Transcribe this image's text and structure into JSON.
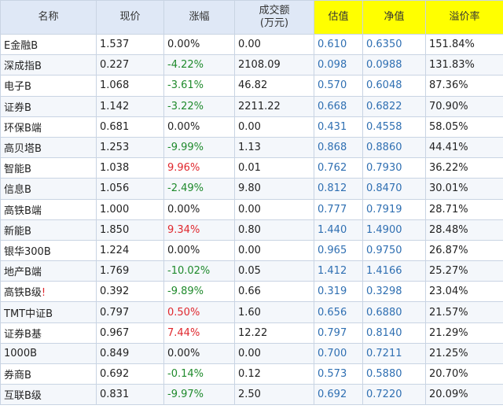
{
  "table": {
    "headers": [
      {
        "label": "名称",
        "sub": "",
        "highlight": false
      },
      {
        "label": "现价",
        "sub": "",
        "highlight": false
      },
      {
        "label": "涨幅",
        "sub": "",
        "highlight": false
      },
      {
        "label": "成交额",
        "sub": "(万元)",
        "highlight": false
      },
      {
        "label": "估值",
        "sub": "",
        "highlight": true
      },
      {
        "label": "净值",
        "sub": "",
        "highlight": true
      },
      {
        "label": "溢价率",
        "sub": "",
        "highlight": true
      }
    ],
    "rows": [
      {
        "name": "E金融B",
        "flag": "",
        "price": "1.537",
        "change": "0.00%",
        "trend": "flat",
        "volume": "0.00",
        "estimate": "0.610",
        "nav": "0.6350",
        "premium": "151.84%"
      },
      {
        "name": "深成指B",
        "flag": "",
        "price": "0.227",
        "change": "-4.22%",
        "trend": "down",
        "volume": "2108.09",
        "estimate": "0.098",
        "nav": "0.0988",
        "premium": "131.83%"
      },
      {
        "name": "电子B",
        "flag": "",
        "price": "1.068",
        "change": "-3.61%",
        "trend": "down",
        "volume": "46.82",
        "estimate": "0.570",
        "nav": "0.6048",
        "premium": "87.36%"
      },
      {
        "name": "证券B",
        "flag": "",
        "price": "1.142",
        "change": "-3.22%",
        "trend": "down",
        "volume": "2211.22",
        "estimate": "0.668",
        "nav": "0.6822",
        "premium": "70.90%"
      },
      {
        "name": "环保B端",
        "flag": "",
        "price": "0.681",
        "change": "0.00%",
        "trend": "flat",
        "volume": "0.00",
        "estimate": "0.431",
        "nav": "0.4558",
        "premium": "58.05%"
      },
      {
        "name": "高贝塔B",
        "flag": "",
        "price": "1.253",
        "change": "-9.99%",
        "trend": "down",
        "volume": "1.13",
        "estimate": "0.868",
        "nav": "0.8860",
        "premium": "44.41%"
      },
      {
        "name": "智能B",
        "flag": "",
        "price": "1.038",
        "change": "9.96%",
        "trend": "up",
        "volume": "0.01",
        "estimate": "0.762",
        "nav": "0.7930",
        "premium": "36.22%"
      },
      {
        "name": "信息B",
        "flag": "",
        "price": "1.056",
        "change": "-2.49%",
        "trend": "down",
        "volume": "9.80",
        "estimate": "0.812",
        "nav": "0.8470",
        "premium": "30.01%"
      },
      {
        "name": "高铁B端",
        "flag": "",
        "price": "1.000",
        "change": "0.00%",
        "trend": "flat",
        "volume": "0.00",
        "estimate": "0.777",
        "nav": "0.7919",
        "premium": "28.71%"
      },
      {
        "name": "新能B",
        "flag": "",
        "price": "1.850",
        "change": "9.34%",
        "trend": "up",
        "volume": "0.80",
        "estimate": "1.440",
        "nav": "1.4900",
        "premium": "28.48%"
      },
      {
        "name": "银华300B",
        "flag": "",
        "price": "1.224",
        "change": "0.00%",
        "trend": "flat",
        "volume": "0.00",
        "estimate": "0.965",
        "nav": "0.9750",
        "premium": "26.87%"
      },
      {
        "name": "地产B端",
        "flag": "",
        "price": "1.769",
        "change": "-10.02%",
        "trend": "down",
        "volume": "0.05",
        "estimate": "1.412",
        "nav": "1.4166",
        "premium": "25.27%"
      },
      {
        "name": "高铁B级",
        "flag": "!",
        "price": "0.392",
        "change": "-9.89%",
        "trend": "down",
        "volume": "0.66",
        "estimate": "0.319",
        "nav": "0.3298",
        "premium": "23.04%"
      },
      {
        "name": "TMT中证B",
        "flag": "",
        "price": "0.797",
        "change": "0.50%",
        "trend": "up",
        "volume": "1.60",
        "estimate": "0.656",
        "nav": "0.6880",
        "premium": "21.57%"
      },
      {
        "name": "证券B基",
        "flag": "",
        "price": "0.967",
        "change": "7.44%",
        "trend": "up",
        "volume": "12.22",
        "estimate": "0.797",
        "nav": "0.8140",
        "premium": "21.29%"
      },
      {
        "name": "1000B",
        "flag": "",
        "price": "0.849",
        "change": "0.00%",
        "trend": "flat",
        "volume": "0.00",
        "estimate": "0.700",
        "nav": "0.7211",
        "premium": "21.25%"
      },
      {
        "name": "券商B",
        "flag": "",
        "price": "0.692",
        "change": "-0.14%",
        "trend": "down",
        "volume": "0.12",
        "estimate": "0.573",
        "nav": "0.5880",
        "premium": "20.70%"
      },
      {
        "name": "互联B级",
        "flag": "",
        "price": "0.831",
        "change": "-9.97%",
        "trend": "down",
        "volume": "2.50",
        "estimate": "0.692",
        "nav": "0.7220",
        "premium": "20.09%"
      }
    ]
  },
  "colors": {
    "up": "#e0282e",
    "down": "#1f8a2c",
    "blue": "#2f6fb2",
    "header_bg": "#dfe8f6",
    "highlight": "#ffff00"
  }
}
